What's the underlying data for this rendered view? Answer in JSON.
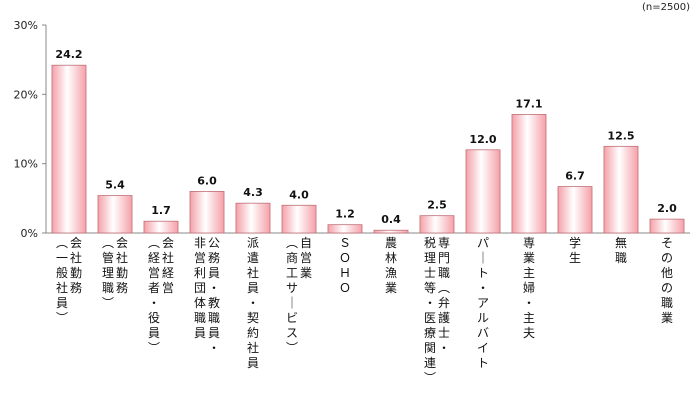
{
  "note": "(n=2500)",
  "chart_data": {
    "type": "bar",
    "categories": [
      "会社勤務（一般社員）",
      "会社勤務（管理職）",
      "会社経営（経営者・役員）",
      "公務員・教職員・非営利団体職員",
      "派遣社員・契約社員",
      "自営業（商工サービス）",
      "ＳＯＨＯ",
      "農林漁業",
      "専門職（弁護士・税理士等・医療関連）",
      "パート・アルバイト",
      "専業主婦・主夫",
      "学生",
      "無職",
      "その他の職業"
    ],
    "category_lines": [
      [
        "会社勤務",
        "（一般社員）"
      ],
      [
        "会社勤務",
        "（管理職）"
      ],
      [
        "会社経営",
        "（経営者・役員）"
      ],
      [
        "公務員・教職員・",
        "非営利団体職員"
      ],
      [
        "派遣社員・契約社員"
      ],
      [
        "自営業",
        "（商工サービス）"
      ],
      [
        "ＳＯＨＯ"
      ],
      [
        "農林漁業"
      ],
      [
        "専門職（弁護士・",
        "税理士等・医療関連）"
      ],
      [
        "パート・アルバイト"
      ],
      [
        "専業主婦・主夫"
      ],
      [
        "学生"
      ],
      [
        "無職"
      ],
      [
        "その他の職業"
      ]
    ],
    "values": [
      24.2,
      5.4,
      1.7,
      6.0,
      4.3,
      4.0,
      1.2,
      0.4,
      2.5,
      12.0,
      17.1,
      6.7,
      12.5,
      2.0
    ],
    "value_labels": [
      "24.2",
      "5.4",
      "1.7",
      "6.0",
      "4.3",
      "4.0",
      "1.2",
      "0.4",
      "2.5",
      "12.0",
      "17.1",
      "6.7",
      "12.5",
      "2.0"
    ],
    "y_ticks": [
      0,
      10,
      20,
      30
    ],
    "y_tick_labels": [
      "0%",
      "10%",
      "20%",
      "30%"
    ],
    "ylim": [
      0,
      30
    ],
    "grid": false,
    "bar_color_top": "#ffffff",
    "bar_color_bottom": "#f4a0a8",
    "bar_border": "#c07078",
    "axis_color": "#888888"
  }
}
